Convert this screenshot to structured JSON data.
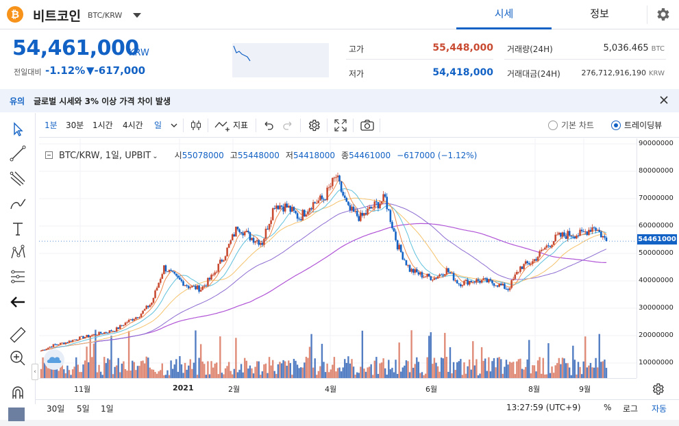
{
  "header": {
    "coin_symbol": "₿",
    "coin_name": "비트코인",
    "pair": "BTC/KRW",
    "tabs": [
      {
        "label": "시세",
        "active": true
      },
      {
        "label": "정보",
        "active": false
      }
    ]
  },
  "summary": {
    "price": "54,461,000",
    "unit": "KRW",
    "change_label": "전일대비",
    "change_rate": "-1.12%",
    "change_amount": "▼-617,000",
    "high_label": "고가",
    "high_value": "55,448,000",
    "low_label": "저가",
    "low_value": "54,418,000",
    "volume_label": "거래량(24H)",
    "volume_value": "5,036.465",
    "volume_unit": "BTC",
    "amount_label": "거래대금(24H)",
    "amount_value": "276,712,916,190",
    "amount_unit": "KRW"
  },
  "notice": {
    "tag": "유의",
    "text": "글로벌 시세와 3% 이상 가격 차이 발생"
  },
  "toolbar": {
    "intervals": [
      {
        "label": "1분",
        "selected": true
      },
      {
        "label": "30분",
        "selected": false
      },
      {
        "label": "1시간",
        "selected": false
      },
      {
        "label": "4시간",
        "selected": false
      },
      {
        "label": "일",
        "selected": true
      }
    ],
    "indicator_label": "지표",
    "basic_chart_label": "기본 차트",
    "tradingview_label": "트레이딩뷰"
  },
  "legend": {
    "title": "BTC/KRW, 1일, UPBIT",
    "open_label": "시",
    "open_value": "55078000",
    "high_label": "고",
    "high_value": "55448000",
    "low_label": "저",
    "low_value": "54418000",
    "close_label": "종",
    "close_value": "54461000",
    "change": "−617000 (−1.12%)"
  },
  "colors": {
    "accent": "#1261c4",
    "up": "#c84a31",
    "down": "#1261c4",
    "ma5": "#f08a4b",
    "ma10": "#5ec0dc",
    "ma20": "#f5c26b",
    "ma60": "#8c6bd1",
    "ma120": "#b053d6"
  },
  "chart_data": {
    "type": "candlestick",
    "x": [
      "2020-10-25",
      "2020-11-01",
      "2020-11-08",
      "2020-11-15",
      "2020-11-22",
      "2020-11-29",
      "2020-12-06",
      "2020-12-13",
      "2020-12-20",
      "2020-12-27",
      "2021-01-03",
      "2021-01-10",
      "2021-01-17",
      "2021-01-24",
      "2021-01-31",
      "2021-02-07",
      "2021-02-14",
      "2021-02-21",
      "2021-02-28",
      "2021-03-07",
      "2021-03-14",
      "2021-03-21",
      "2021-03-28",
      "2021-04-04",
      "2021-04-11",
      "2021-04-18",
      "2021-04-25",
      "2021-05-02",
      "2021-05-09",
      "2021-05-16",
      "2021-05-23",
      "2021-05-30",
      "2021-06-06",
      "2021-06-13",
      "2021-06-20",
      "2021-06-27",
      "2021-07-04",
      "2021-07-11",
      "2021-07-18",
      "2021-07-25",
      "2021-08-01",
      "2021-08-08",
      "2021-08-15",
      "2021-08-22",
      "2021-08-29",
      "2021-09-05",
      "2021-09-12"
    ],
    "close": [
      14500000,
      16500000,
      17500000,
      19000000,
      20000000,
      21000000,
      22000000,
      25000000,
      27500000,
      32000000,
      45000000,
      41000000,
      38000000,
      37000000,
      42000000,
      50000000,
      60000000,
      56000000,
      54000000,
      68000000,
      67000000,
      63000000,
      68000000,
      70000000,
      78000000,
      66000000,
      63000000,
      67000000,
      70000000,
      53000000,
      44000000,
      42000000,
      41000000,
      44000000,
      39000000,
      40000000,
      40000000,
      39000000,
      37000000,
      45000000,
      47000000,
      52000000,
      56000000,
      57000000,
      57000000,
      60000000,
      54461000
    ],
    "volume_max": 90000000,
    "ylim": [
      0,
      90000000
    ],
    "y_ticks": [
      "90000000",
      "80000000",
      "70000000",
      "60000000",
      "50000000",
      "40000000",
      "30000000",
      "20000000",
      "10000000"
    ],
    "x_ticks": [
      "11월",
      "2021",
      "2월",
      "4월",
      "6월",
      "8월",
      "9월"
    ],
    "last_price_label": "54461000"
  },
  "bottom": {
    "ranges": [
      "30일",
      "5일",
      "1일"
    ],
    "clock": "13:27:59 (UTC+9)",
    "percent": "%",
    "log": "로그",
    "auto": "자동"
  }
}
